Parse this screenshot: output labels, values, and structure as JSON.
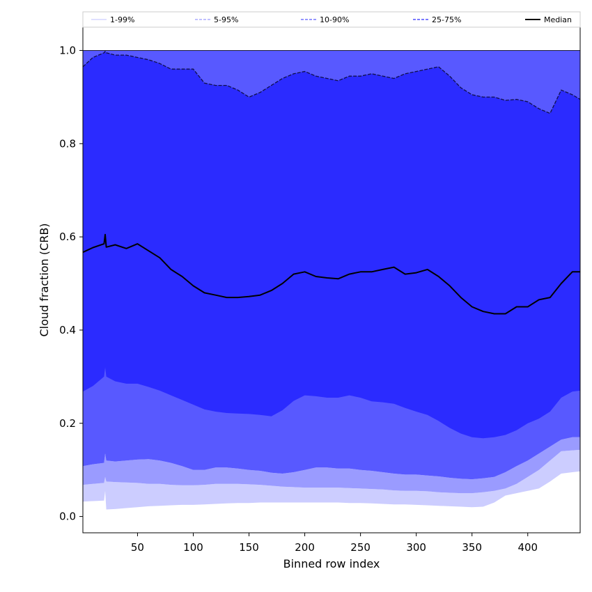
{
  "chart_data": {
    "type": "area",
    "title": "",
    "xlabel": "Binned row index",
    "ylabel": "Cloud fraction (CRB)",
    "xlim": [
      1,
      447
    ],
    "ylim": [
      -0.035,
      1.05
    ],
    "xticks": [
      50,
      100,
      150,
      200,
      250,
      300,
      350,
      400
    ],
    "yticks": [
      0.0,
      0.2,
      0.4,
      0.6,
      0.8,
      1.0
    ],
    "ytick_labels": [
      "0.0",
      "0.2",
      "0.4",
      "0.6",
      "0.8",
      "1.0"
    ],
    "grid": false,
    "legend_position": "top",
    "x": [
      1,
      10,
      20,
      21,
      22,
      30,
      40,
      50,
      60,
      70,
      80,
      90,
      100,
      110,
      120,
      130,
      140,
      150,
      160,
      170,
      180,
      190,
      200,
      210,
      220,
      230,
      240,
      250,
      260,
      270,
      280,
      290,
      300,
      310,
      320,
      330,
      340,
      350,
      360,
      370,
      380,
      390,
      400,
      410,
      420,
      430,
      440,
      447
    ],
    "bands": [
      {
        "name": "1-99%",
        "color": "#cccdff",
        "lower": [
          0.032,
          0.033,
          0.034,
          0.055,
          0.015,
          0.016,
          0.018,
          0.02,
          0.022,
          0.023,
          0.024,
          0.025,
          0.025,
          0.026,
          0.027,
          0.028,
          0.029,
          0.029,
          0.03,
          0.03,
          0.03,
          0.03,
          0.03,
          0.03,
          0.03,
          0.03,
          0.029,
          0.029,
          0.028,
          0.027,
          0.026,
          0.026,
          0.025,
          0.024,
          0.023,
          0.022,
          0.021,
          0.02,
          0.021,
          0.03,
          0.045,
          0.05,
          0.055,
          0.06,
          0.075,
          0.092,
          0.095,
          0.097
        ],
        "upper": [
          0.068,
          0.07,
          0.072,
          0.085,
          0.075,
          0.074,
          0.073,
          0.072,
          0.07,
          0.07,
          0.068,
          0.067,
          0.067,
          0.068,
          0.07,
          0.07,
          0.07,
          0.069,
          0.068,
          0.066,
          0.064,
          0.063,
          0.062,
          0.062,
          0.062,
          0.062,
          0.061,
          0.06,
          0.059,
          0.058,
          0.056,
          0.055,
          0.055,
          0.054,
          0.052,
          0.051,
          0.05,
          0.05,
          0.052,
          0.055,
          0.06,
          0.07,
          0.085,
          0.1,
          0.12,
          0.14,
          0.142,
          0.143
        ]
      },
      {
        "name": "5-95%",
        "color": "#9a9bff",
        "lower": [
          0.068,
          0.07,
          0.072,
          0.085,
          0.075,
          0.074,
          0.073,
          0.072,
          0.07,
          0.07,
          0.068,
          0.067,
          0.067,
          0.068,
          0.07,
          0.07,
          0.07,
          0.069,
          0.068,
          0.066,
          0.064,
          0.063,
          0.062,
          0.062,
          0.062,
          0.062,
          0.061,
          0.06,
          0.059,
          0.058,
          0.056,
          0.055,
          0.055,
          0.054,
          0.052,
          0.051,
          0.05,
          0.05,
          0.052,
          0.055,
          0.06,
          0.07,
          0.085,
          0.1,
          0.12,
          0.14,
          0.142,
          0.143
        ],
        "upper": [
          0.108,
          0.112,
          0.115,
          0.135,
          0.12,
          0.118,
          0.12,
          0.122,
          0.123,
          0.12,
          0.115,
          0.108,
          0.1,
          0.1,
          0.105,
          0.105,
          0.103,
          0.1,
          0.098,
          0.094,
          0.092,
          0.095,
          0.1,
          0.105,
          0.105,
          0.103,
          0.103,
          0.1,
          0.098,
          0.095,
          0.092,
          0.09,
          0.09,
          0.088,
          0.086,
          0.083,
          0.081,
          0.08,
          0.082,
          0.085,
          0.095,
          0.108,
          0.12,
          0.135,
          0.15,
          0.165,
          0.17,
          0.17
        ]
      },
      {
        "name": "10-90%",
        "color": "#5859ff",
        "lower": [
          0.108,
          0.112,
          0.115,
          0.135,
          0.12,
          0.118,
          0.12,
          0.122,
          0.123,
          0.12,
          0.115,
          0.108,
          0.1,
          0.1,
          0.105,
          0.105,
          0.103,
          0.1,
          0.098,
          0.094,
          0.092,
          0.095,
          0.1,
          0.105,
          0.105,
          0.103,
          0.103,
          0.1,
          0.098,
          0.095,
          0.092,
          0.09,
          0.09,
          0.088,
          0.086,
          0.083,
          0.081,
          0.08,
          0.082,
          0.085,
          0.095,
          0.108,
          0.12,
          0.135,
          0.15,
          0.165,
          0.17,
          0.17
        ],
        "upper": [
          1.0,
          1.0,
          1.0,
          1.0,
          1.0,
          1.0,
          1.0,
          1.0,
          1.0,
          1.0,
          1.0,
          1.0,
          1.0,
          1.0,
          1.0,
          1.0,
          1.0,
          1.0,
          1.0,
          1.0,
          1.0,
          1.0,
          1.0,
          1.0,
          1.0,
          1.0,
          1.0,
          1.0,
          1.0,
          1.0,
          1.0,
          1.0,
          1.0,
          1.0,
          1.0,
          1.0,
          1.0,
          1.0,
          1.0,
          1.0,
          1.0,
          1.0,
          1.0,
          1.0,
          1.0,
          1.0,
          1.0,
          1.0
        ]
      },
      {
        "name": "25-75%",
        "color": "#2b2bff",
        "lower": [
          0.268,
          0.28,
          0.3,
          0.32,
          0.3,
          0.29,
          0.285,
          0.285,
          0.278,
          0.27,
          0.26,
          0.25,
          0.24,
          0.23,
          0.225,
          0.222,
          0.221,
          0.22,
          0.218,
          0.215,
          0.228,
          0.248,
          0.26,
          0.258,
          0.255,
          0.255,
          0.26,
          0.255,
          0.247,
          0.245,
          0.242,
          0.233,
          0.225,
          0.218,
          0.205,
          0.19,
          0.178,
          0.17,
          0.168,
          0.17,
          0.175,
          0.185,
          0.2,
          0.21,
          0.225,
          0.255,
          0.268,
          0.27
        ],
        "upper": [
          0.965,
          0.985,
          0.995,
          0.998,
          0.995,
          0.99,
          0.99,
          0.985,
          0.98,
          0.972,
          0.96,
          0.96,
          0.96,
          0.93,
          0.925,
          0.925,
          0.915,
          0.9,
          0.91,
          0.925,
          0.94,
          0.95,
          0.955,
          0.945,
          0.94,
          0.935,
          0.945,
          0.945,
          0.95,
          0.945,
          0.94,
          0.95,
          0.955,
          0.96,
          0.965,
          0.945,
          0.92,
          0.905,
          0.9,
          0.9,
          0.893,
          0.895,
          0.89,
          0.875,
          0.865,
          0.915,
          0.905,
          0.895
        ]
      }
    ],
    "series": [
      {
        "name": "Median",
        "color": "#000000",
        "values": [
          0.567,
          0.577,
          0.585,
          0.605,
          0.578,
          0.583,
          0.575,
          0.585,
          0.57,
          0.555,
          0.53,
          0.515,
          0.495,
          0.48,
          0.475,
          0.47,
          0.47,
          0.472,
          0.475,
          0.485,
          0.5,
          0.52,
          0.525,
          0.515,
          0.512,
          0.51,
          0.52,
          0.525,
          0.525,
          0.53,
          0.535,
          0.52,
          0.523,
          0.53,
          0.515,
          0.495,
          0.47,
          0.45,
          0.44,
          0.435,
          0.435,
          0.45,
          0.45,
          0.465,
          0.47,
          0.5,
          0.525,
          0.525
        ]
      }
    ],
    "legend": [
      {
        "label": "1-99%",
        "style": "solid",
        "color": "#cccdff"
      },
      {
        "label": "5-95%",
        "style": "dashed",
        "color": "#9a9bff"
      },
      {
        "label": "10-90%",
        "style": "dashed",
        "color": "#5859ff"
      },
      {
        "label": "25-75%",
        "style": "dashed",
        "color": "#2b2bff"
      },
      {
        "label": "Median",
        "style": "solid",
        "color": "#000000"
      }
    ]
  }
}
